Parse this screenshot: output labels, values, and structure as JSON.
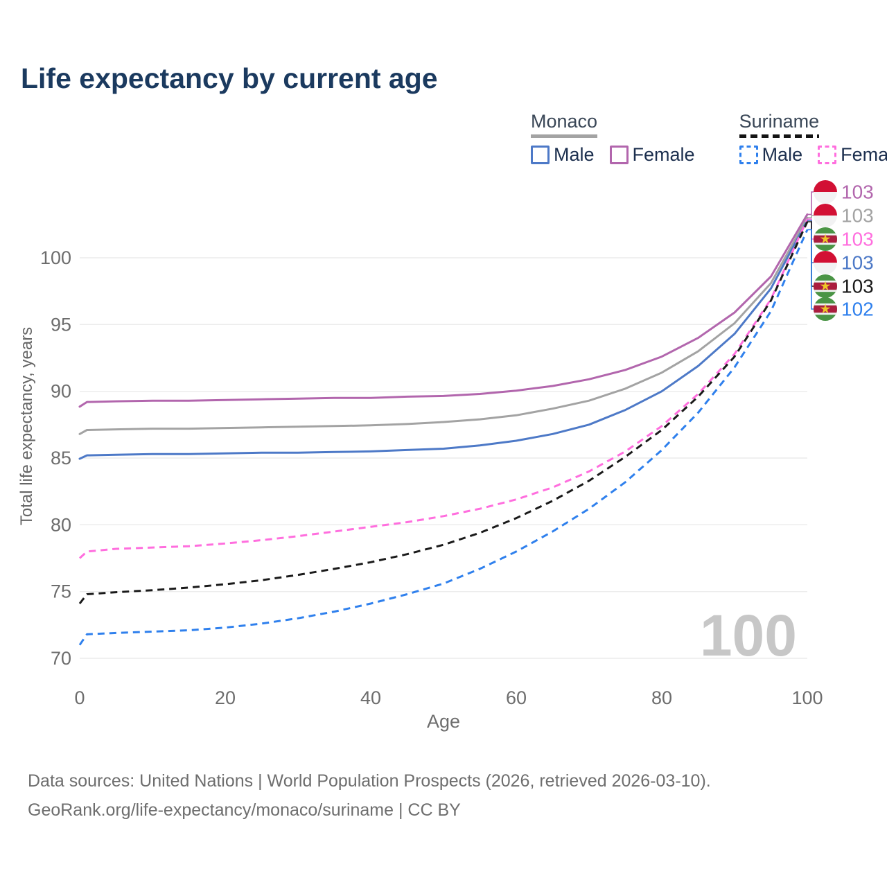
{
  "title": "Life expectancy by current age",
  "legend": {
    "groups": [
      {
        "name": "Monaco",
        "underline_color": "#a3a3a3",
        "underline_style": "solid",
        "items": [
          {
            "label": "Male",
            "color": "#4d79c7"
          },
          {
            "label": "Female",
            "color": "#b266ad"
          }
        ]
      },
      {
        "name": "Suriname",
        "underline_color": "#1a1a1a",
        "underline_style": "dashed",
        "items": [
          {
            "label": "Male",
            "color": "#2f80ed"
          },
          {
            "label": "Female",
            "color": "#ff6ede"
          }
        ]
      }
    ]
  },
  "footer": {
    "line1": "Data sources: United Nations | World Population Prospects (2026, retrieved 2026-03-10).",
    "line2": "GeoRank.org/life-expectancy/monaco/suriname | CC BY"
  },
  "chart_data": {
    "type": "line",
    "title": "Life expectancy by current age",
    "xlabel": "Age",
    "ylabel": "Total life expectancy, years",
    "xlim": [
      0,
      100
    ],
    "ylim": [
      70,
      104
    ],
    "x_ticks": [
      0,
      20,
      40,
      60,
      80,
      100
    ],
    "y_ticks": [
      70,
      75,
      80,
      85,
      90,
      95,
      100
    ],
    "grid": "horizontal",
    "legend_position": "top-right",
    "watermark": "100",
    "ages": [
      0,
      1,
      5,
      10,
      15,
      20,
      25,
      30,
      35,
      40,
      45,
      50,
      55,
      60,
      65,
      70,
      75,
      80,
      85,
      90,
      95,
      100
    ],
    "series": [
      {
        "name": "Monaco Female",
        "country": "Monaco",
        "sex": "Female",
        "color": "#b266ad",
        "line_style": "solid",
        "flag": "monaco",
        "end_label": "103",
        "values": [
          88.85,
          89.2,
          89.25,
          89.3,
          89.3,
          89.35,
          89.4,
          89.45,
          89.5,
          89.5,
          89.6,
          89.65,
          89.8,
          90.05,
          90.4,
          90.9,
          91.6,
          92.6,
          94.0,
          95.9,
          98.6,
          103.25
        ]
      },
      {
        "name": "Monaco",
        "country": "Monaco",
        "sex": "All",
        "color": "#a3a3a3",
        "line_style": "solid",
        "flag": "monaco",
        "end_label": "103",
        "values": [
          86.8,
          87.1,
          87.15,
          87.2,
          87.2,
          87.25,
          87.3,
          87.35,
          87.4,
          87.45,
          87.55,
          87.7,
          87.9,
          88.2,
          88.7,
          89.3,
          90.2,
          91.4,
          93.0,
          95.1,
          98.1,
          103.0
        ]
      },
      {
        "name": "Monaco Male",
        "country": "Monaco",
        "sex": "Male",
        "color": "#4d79c7",
        "line_style": "solid",
        "flag": "monaco",
        "end_label": "103",
        "values": [
          84.95,
          85.2,
          85.25,
          85.3,
          85.3,
          85.35,
          85.4,
          85.4,
          85.45,
          85.5,
          85.6,
          85.7,
          85.95,
          86.3,
          86.8,
          87.5,
          88.6,
          90.0,
          91.9,
          94.3,
          97.7,
          102.8
        ]
      },
      {
        "name": "Suriname Female",
        "country": "Suriname",
        "sex": "Female",
        "color": "#ff6ede",
        "line_style": "dashed",
        "flag": "suriname",
        "end_label": "103",
        "values": [
          77.5,
          78.0,
          78.2,
          78.3,
          78.4,
          78.6,
          78.85,
          79.15,
          79.5,
          79.85,
          80.2,
          80.65,
          81.2,
          81.9,
          82.8,
          84.0,
          85.5,
          87.4,
          89.8,
          92.8,
          96.9,
          102.9
        ]
      },
      {
        "name": "Suriname",
        "country": "Suriname",
        "sex": "All",
        "color": "#1a1a1a",
        "line_style": "dashed",
        "flag": "suriname",
        "end_label": "103",
        "values": [
          74.1,
          74.8,
          74.95,
          75.1,
          75.3,
          75.55,
          75.85,
          76.25,
          76.7,
          77.2,
          77.8,
          78.5,
          79.4,
          80.5,
          81.8,
          83.3,
          85.1,
          87.1,
          89.6,
          92.6,
          96.8,
          102.7
        ]
      },
      {
        "name": "Suriname Male",
        "country": "Suriname",
        "sex": "Male",
        "color": "#2f80ed",
        "line_style": "dashed",
        "flag": "suriname",
        "end_label": "102",
        "values": [
          71.0,
          71.8,
          71.9,
          72.0,
          72.1,
          72.3,
          72.6,
          73.0,
          73.5,
          74.1,
          74.8,
          75.6,
          76.7,
          78.0,
          79.5,
          81.2,
          83.2,
          85.6,
          88.4,
          91.8,
          96.0,
          102.1
        ]
      }
    ]
  }
}
